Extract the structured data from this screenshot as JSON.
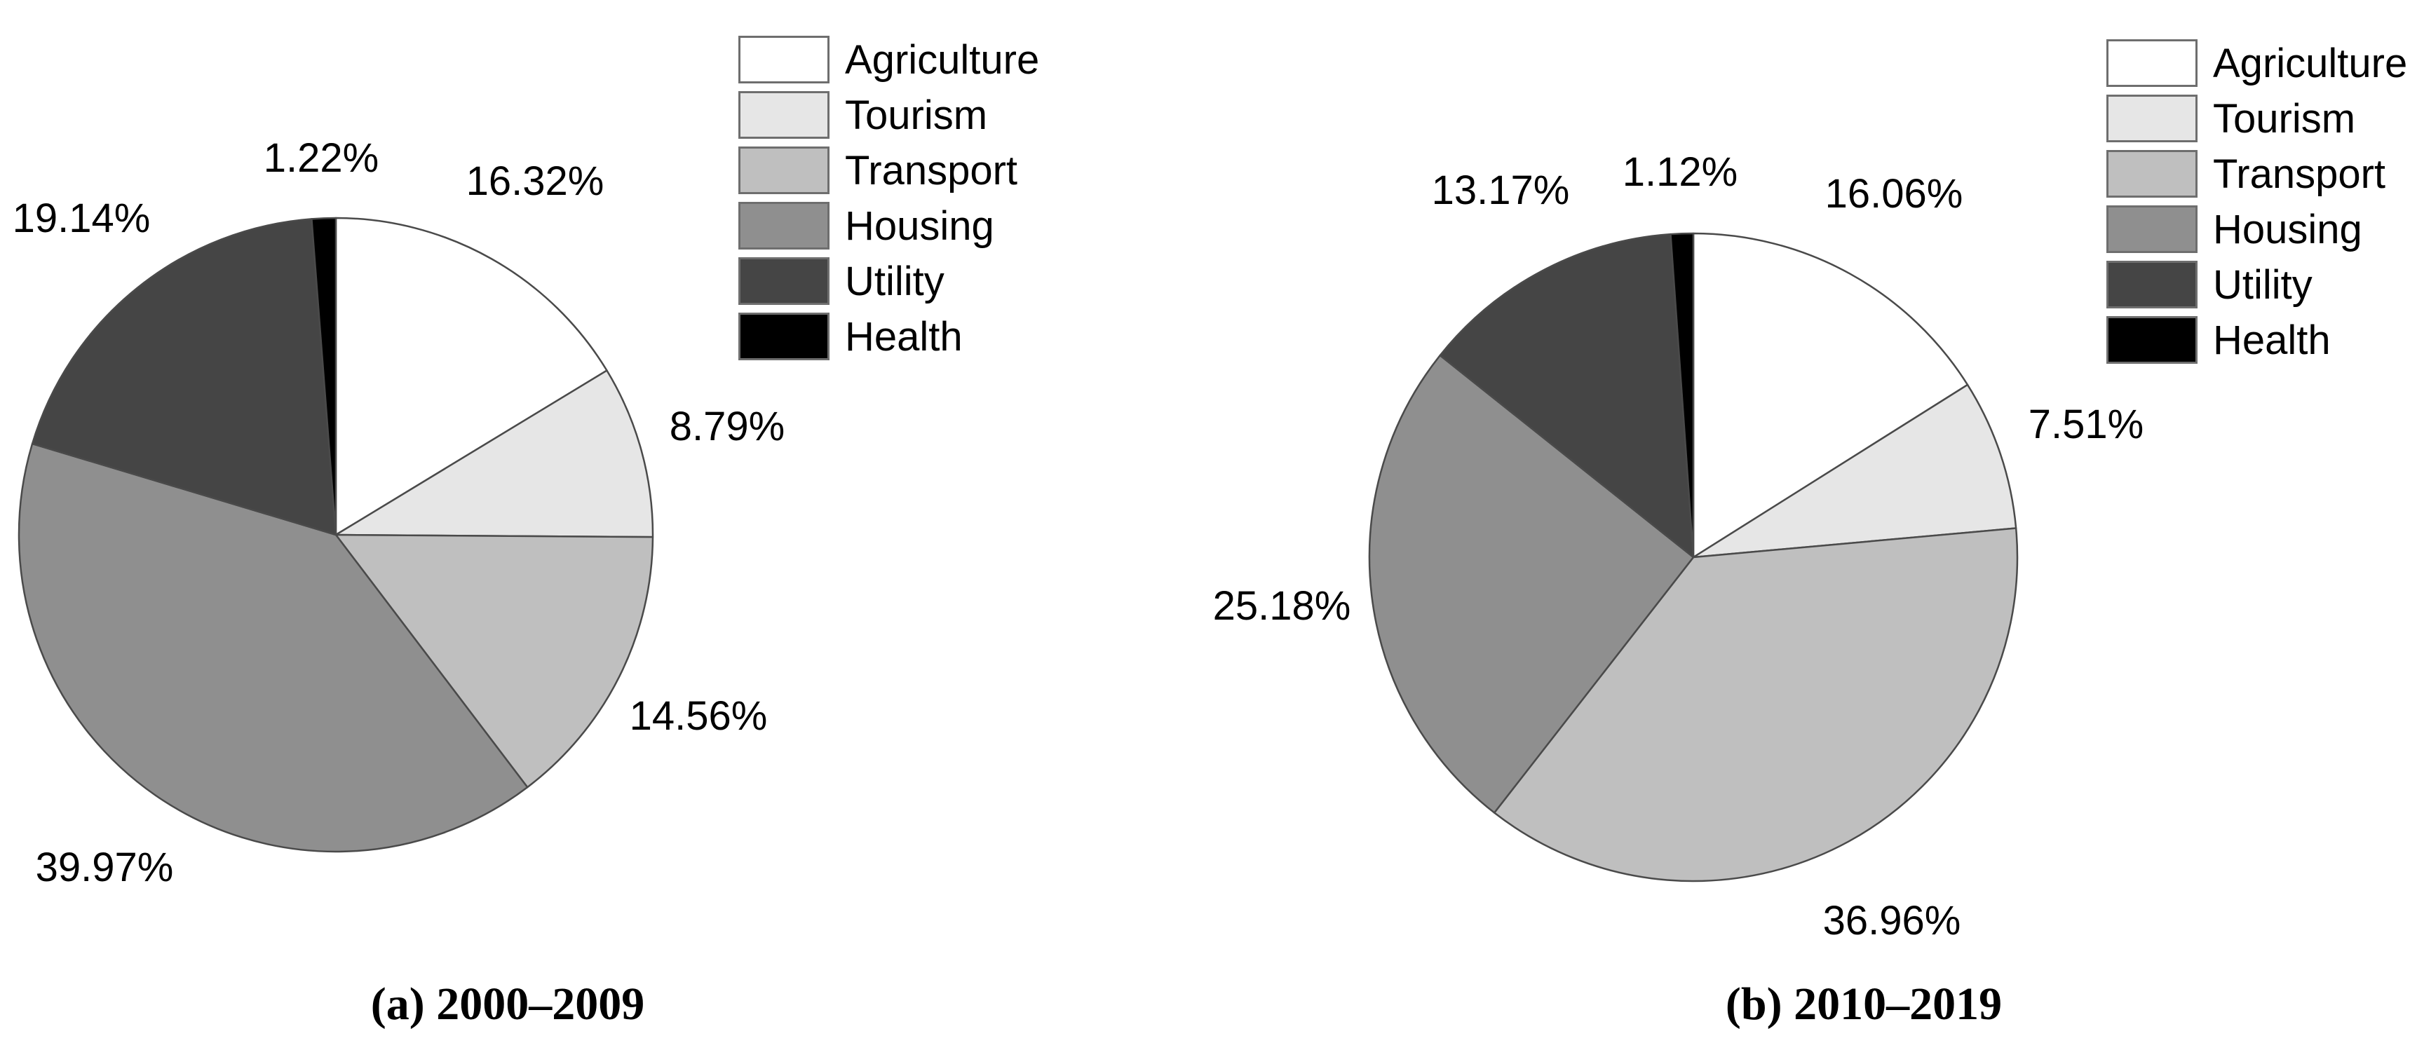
{
  "figure": {
    "background": "#ffffff",
    "slice_stroke_color": "#4a4a4a",
    "legend_swatch_border_color": "#6e6e6e",
    "text_color": "#000000"
  },
  "palette": {
    "Agriculture": "#ffffff",
    "Tourism": "#e6e6e6",
    "Transport": "#bfbfbf",
    "Housing": "#8f8f8f",
    "Utility": "#454545",
    "Health": "#000000"
  },
  "legend": {
    "items": [
      "Agriculture",
      "Tourism",
      "Transport",
      "Housing",
      "Utility",
      "Health"
    ],
    "position": "top-right"
  },
  "chart_data": [
    {
      "type": "pie",
      "title": "(a) 2000–2009",
      "categories": [
        "Agriculture",
        "Tourism",
        "Transport",
        "Housing",
        "Utility",
        "Health"
      ],
      "values": [
        16.32,
        8.79,
        14.56,
        39.97,
        19.14,
        1.22
      ],
      "labels": [
        "16.32%",
        "8.79%",
        "14.56%",
        "39.97%",
        "19.14%",
        "1.22%"
      ],
      "colors": [
        "#ffffff",
        "#e6e6e6",
        "#bfbfbf",
        "#8f8f8f",
        "#454545",
        "#000000"
      ],
      "start_angle_deg": 0,
      "direction": "clockwise",
      "legend_position": "top-right",
      "grid": false
    },
    {
      "type": "pie",
      "title": "(b) 2010–2019",
      "categories": [
        "Agriculture",
        "Tourism",
        "Transport",
        "Housing",
        "Utility",
        "Health"
      ],
      "values": [
        16.06,
        7.51,
        36.96,
        25.18,
        13.17,
        1.12
      ],
      "labels": [
        "16.06%",
        "7.51%",
        "36.96%",
        "25.18%",
        "13.17%",
        "1.12%"
      ],
      "colors": [
        "#ffffff",
        "#e6e6e6",
        "#bfbfbf",
        "#8f8f8f",
        "#454545",
        "#000000"
      ],
      "start_angle_deg": 0,
      "direction": "clockwise",
      "legend_position": "top-right",
      "grid": false
    }
  ]
}
